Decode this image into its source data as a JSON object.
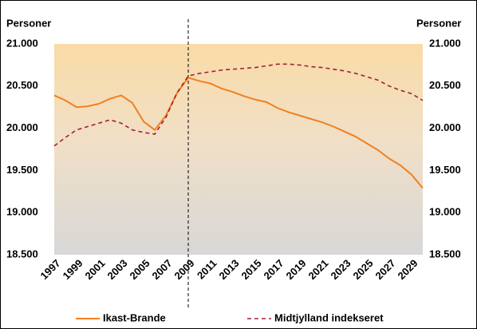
{
  "chart_data": {
    "type": "line",
    "y_label": "Personer",
    "y2_label": "Personer",
    "x": [
      1997,
      1998,
      1999,
      2000,
      2001,
      2002,
      2003,
      2004,
      2005,
      2006,
      2007,
      2008,
      2009,
      2010,
      2011,
      2012,
      2013,
      2014,
      2015,
      2016,
      2017,
      2018,
      2019,
      2020,
      2021,
      2022,
      2023,
      2024,
      2025,
      2026,
      2027,
      2028,
      2029,
      2030
    ],
    "xlim": [
      1997,
      2030
    ],
    "xticks": [
      1997,
      1999,
      2001,
      2003,
      2005,
      2007,
      2009,
      2011,
      2013,
      2015,
      2017,
      2019,
      2021,
      2023,
      2025,
      2027,
      2029
    ],
    "ylim": [
      18500,
      21000
    ],
    "yticks": [
      {
        "value": 18500,
        "label": "18.500"
      },
      {
        "value": 19000,
        "label": "19.000"
      },
      {
        "value": 19500,
        "label": "19.500"
      },
      {
        "value": 20000,
        "label": "20.000"
      },
      {
        "value": 20500,
        "label": "20.500"
      },
      {
        "value": 21000,
        "label": "21.000"
      }
    ],
    "y2lim": [
      18500,
      21000
    ],
    "y2ticks": [
      {
        "value": 18500,
        "label": "18.500"
      },
      {
        "value": 19000,
        "label": "19.000"
      },
      {
        "value": 19500,
        "label": "19.500"
      },
      {
        "value": 20000,
        "label": "20.000"
      },
      {
        "value": 20500,
        "label": "20.500"
      },
      {
        "value": 21000,
        "label": "21.000"
      }
    ],
    "vline": 2009,
    "legend": "bottom",
    "series": [
      {
        "name": "Ikast-Brande",
        "color": "#f08020",
        "dash": false,
        "values": [
          20390,
          20330,
          20250,
          20260,
          20290,
          20350,
          20390,
          20300,
          20080,
          19980,
          20150,
          20420,
          20600,
          20560,
          20530,
          20470,
          20430,
          20380,
          20340,
          20310,
          20240,
          20190,
          20150,
          20110,
          20070,
          20020,
          19960,
          19900,
          19820,
          19740,
          19640,
          19560,
          19450,
          19290
        ]
      },
      {
        "name": "Midtjylland indekseret",
        "color": "#a0203a",
        "dash": true,
        "values": [
          19790,
          19890,
          19980,
          20020,
          20060,
          20100,
          20060,
          19980,
          19950,
          19930,
          20130,
          20420,
          20620,
          20650,
          20670,
          20690,
          20700,
          20710,
          20720,
          20740,
          20760,
          20760,
          20750,
          20730,
          20720,
          20700,
          20680,
          20650,
          20610,
          20570,
          20500,
          20450,
          20410,
          20330
        ]
      }
    ]
  }
}
